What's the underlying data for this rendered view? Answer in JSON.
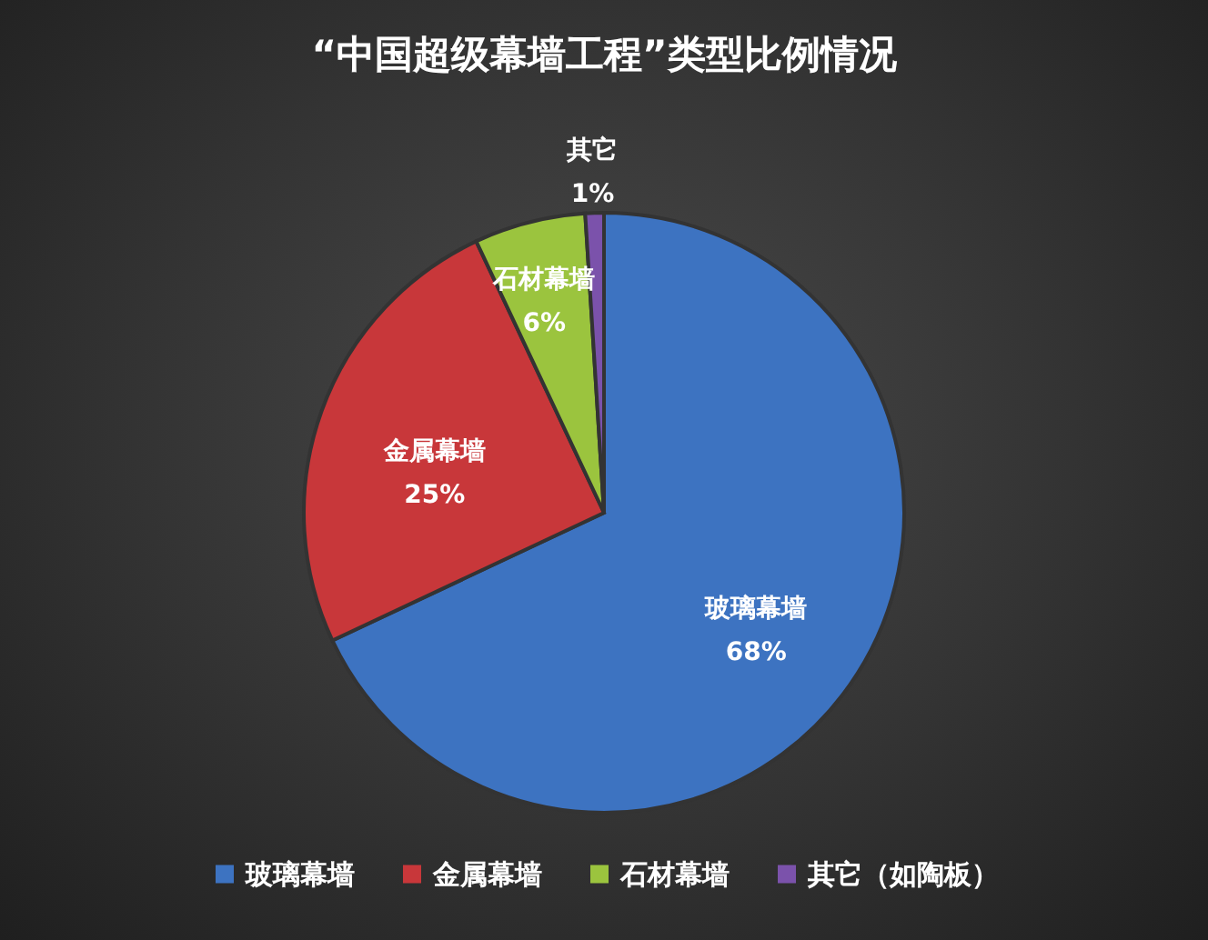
{
  "chart_data": {
    "type": "pie",
    "title": "“中国超级幕墙工程”类型比例情况",
    "categories": [
      "玻璃幕墙",
      "金属幕墙",
      "石材幕墙",
      "其它（如陶板）"
    ],
    "values": [
      68,
      25,
      6,
      1
    ],
    "colors": [
      "#3d73c1",
      "#c8373a",
      "#9bc43e",
      "#7b52ab"
    ],
    "value_labels": [
      "玻璃幕墙\n68%",
      "金属幕墙\n25%",
      "石材幕墙\n6%",
      "其它\n1%"
    ],
    "legend": "bottom"
  }
}
